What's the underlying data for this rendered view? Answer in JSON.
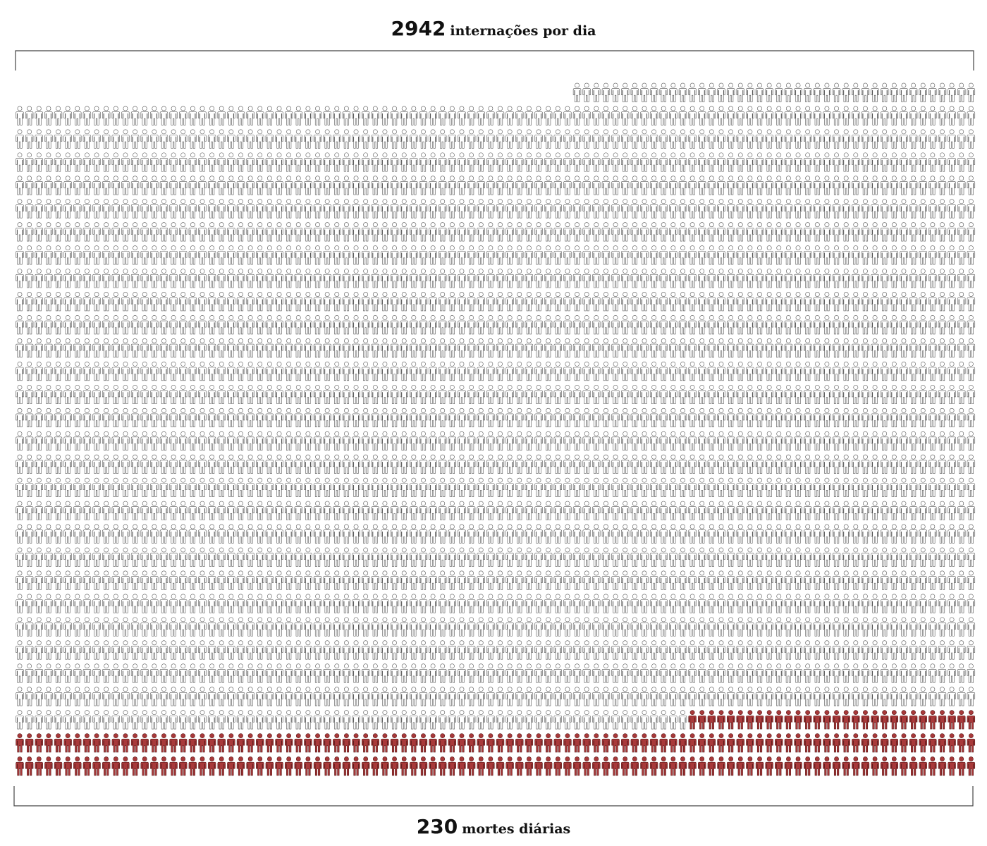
{
  "chart_data": {
    "type": "isotype",
    "total": {
      "value": 2942,
      "label": "internações por dia",
      "color": "#ffffff",
      "outline": "#555555"
    },
    "highlight": {
      "value": 230,
      "label": "mortes diárias",
      "color": "#a8393a",
      "outline": "#5a1a1a"
    }
  }
}
